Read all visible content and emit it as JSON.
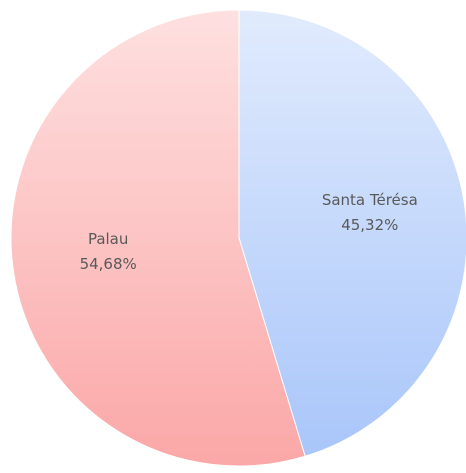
{
  "chart_data": {
    "type": "pie",
    "categories": [
      "Santa Térésa",
      "Palau"
    ],
    "values": [
      45.32,
      54.68
    ],
    "value_labels": [
      "45,32%",
      "54,68%"
    ],
    "colors": [
      "#a9c6fa",
      "#fba7a7"
    ]
  }
}
